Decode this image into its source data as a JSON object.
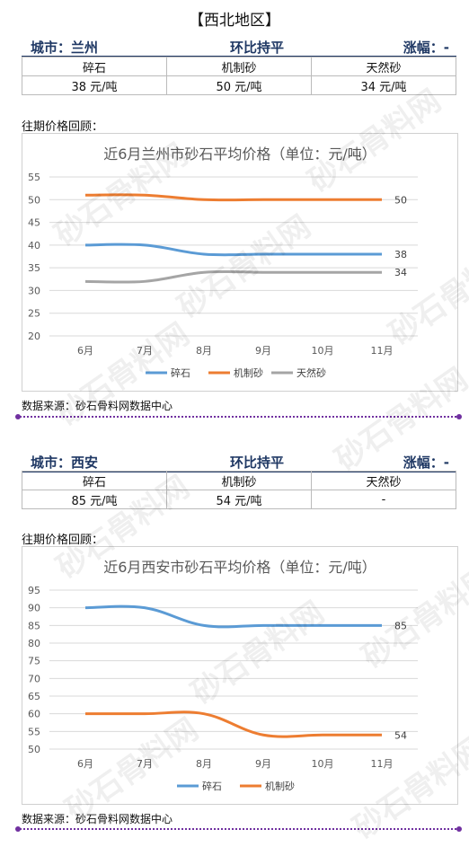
{
  "region_title": "【西北地区】",
  "watermark_text": "砂石骨料网",
  "sections": [
    {
      "city_label": "城市：兰州",
      "trend_label": "环比持平",
      "change_label": "涨幅：-",
      "table_headers": [
        "碎石",
        "机制砂",
        "天然砂"
      ],
      "table_values": [
        "38 元/吨",
        "50 元/吨",
        "34 元/吨"
      ],
      "review_label": "往期价格回顾：",
      "source_label": "数据来源：砂石骨料网数据中心"
    },
    {
      "city_label": "城市：西安",
      "trend_label": "环比持平",
      "change_label": "涨幅：-",
      "table_headers": [
        "碎石",
        "机制砂",
        "天然砂"
      ],
      "table_values": [
        "85 元/吨",
        "54 元/吨",
        "-"
      ],
      "review_label": "往期价格回顾：",
      "source_label": "数据来源：砂石骨料网数据中心"
    }
  ],
  "chart_data": [
    {
      "type": "line",
      "title": "近6月兰州市砂石平均价格（单位：元/吨）",
      "categories": [
        "6月",
        "7月",
        "8月",
        "9月",
        "10月",
        "11月"
      ],
      "ylim": [
        20,
        55
      ],
      "yticks": [
        20,
        25,
        30,
        35,
        40,
        45,
        50,
        55
      ],
      "grid": true,
      "legend": "bottom",
      "series": [
        {
          "name": "碎石",
          "color": "#5b9bd5",
          "values": [
            40,
            40,
            38,
            38,
            38,
            38
          ],
          "end_label": "38"
        },
        {
          "name": "机制砂",
          "color": "#ed7d31",
          "values": [
            51,
            51,
            50,
            50,
            50,
            50
          ],
          "end_label": "50"
        },
        {
          "name": "天然砂",
          "color": "#a5a5a5",
          "values": [
            32,
            32,
            34,
            34,
            34,
            34
          ],
          "end_label": "34"
        }
      ]
    },
    {
      "type": "line",
      "title": "近6月西安市砂石平均价格（单位：元/吨）",
      "categories": [
        "6月",
        "7月",
        "8月",
        "9月",
        "10月",
        "11月"
      ],
      "ylim": [
        50,
        95
      ],
      "yticks": [
        50,
        55,
        60,
        65,
        70,
        75,
        80,
        85,
        90,
        95
      ],
      "grid": true,
      "legend": "bottom",
      "series": [
        {
          "name": "碎石",
          "color": "#5b9bd5",
          "values": [
            90,
            90,
            85,
            85,
            85,
            85
          ],
          "end_label": "85"
        },
        {
          "name": "机制砂",
          "color": "#ed7d31",
          "values": [
            60,
            60,
            60,
            54,
            54,
            54
          ],
          "end_label": "54"
        }
      ]
    }
  ]
}
